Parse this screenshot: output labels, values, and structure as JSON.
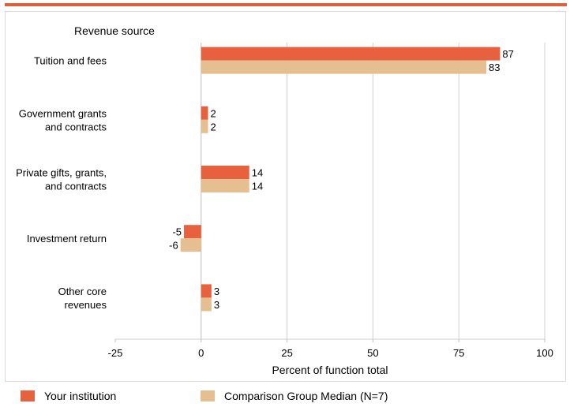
{
  "chart_data": {
    "type": "bar",
    "orientation": "horizontal",
    "ylabel": "Revenue source",
    "xlabel": "Percent of function total",
    "xlim": [
      -25,
      100
    ],
    "xticks": [
      -25,
      0,
      25,
      50,
      75,
      100
    ],
    "grid": true,
    "legend_position": "bottom",
    "categories": [
      "Tuition and fees",
      "Government grants\nand contracts",
      "Private gifts, grants,\nand contracts",
      "Investment return",
      "Other core\nrevenues"
    ],
    "series": [
      {
        "name": "Your institution",
        "color": "#e8613f",
        "values": [
          87,
          2,
          14,
          -5,
          3
        ]
      },
      {
        "name": "Comparison Group Median (N=7)",
        "color": "#e5bf8f",
        "values": [
          83,
          2,
          14,
          -6,
          3
        ]
      }
    ]
  }
}
